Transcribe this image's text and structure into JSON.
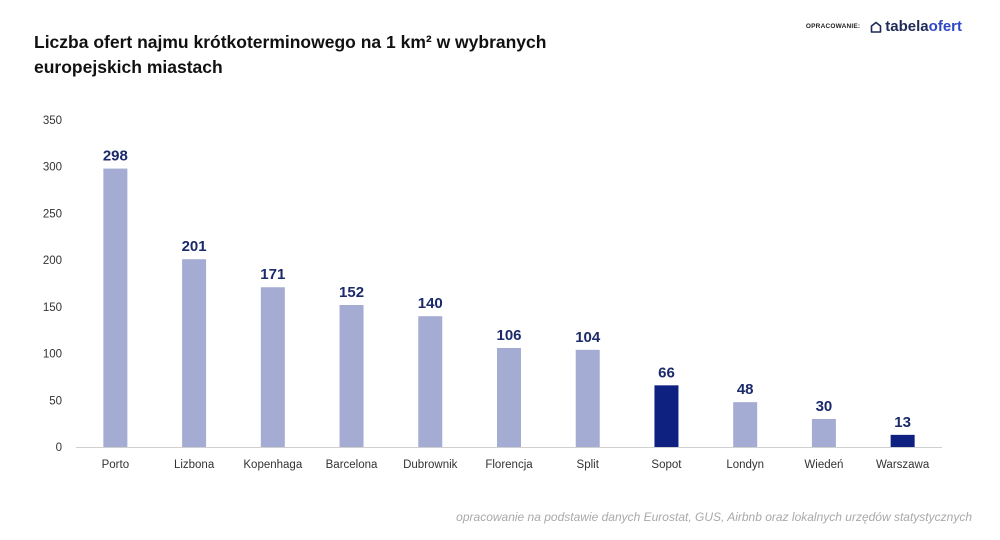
{
  "title": "Liczba ofert najmu krótkoterminowego na 1 km² w wybranych europejskich miastach",
  "brand": {
    "prefix": "OPRACOWANIE:",
    "name_part1": "tabela",
    "name_part2": "ofert",
    "icon": "house-outline-icon"
  },
  "source_note": "opracowanie na podstawie danych Eurostat, GUS, Airbnb oraz lokalnych urzędów statystycznych",
  "colors": {
    "bar": "#a4acd4",
    "highlight": "#0e2080",
    "value_label": "#1b2a6b"
  },
  "chart_data": {
    "type": "bar",
    "title": "Liczba ofert najmu krótkoterminowego na 1 km² w wybranych europejskich miastach",
    "categories": [
      "Porto",
      "Lizbona",
      "Kopenhaga",
      "Barcelona",
      "Dubrownik",
      "Florencja",
      "Split",
      "Sopot",
      "Londyn",
      "Wiedeń",
      "Warszawa"
    ],
    "values": [
      298,
      201,
      171,
      152,
      140,
      106,
      104,
      66,
      48,
      30,
      13
    ],
    "highlighted": [
      "Sopot",
      "Warszawa"
    ],
    "ylim": [
      0,
      350
    ],
    "yticks": [
      0,
      50,
      100,
      150,
      200,
      250,
      300,
      350
    ],
    "xlabel": "",
    "ylabel": "",
    "grid": false,
    "data_labels": true,
    "legend": "none"
  }
}
